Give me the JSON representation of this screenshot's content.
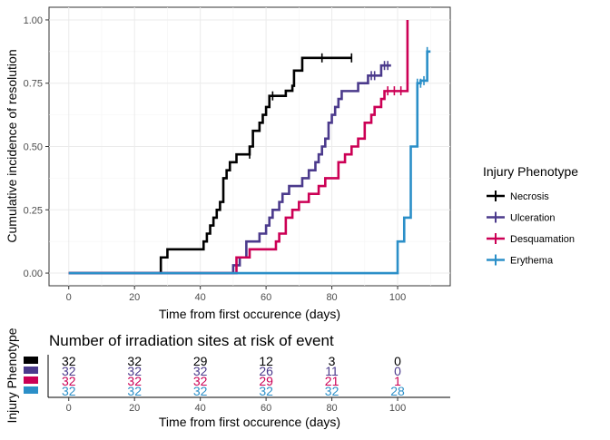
{
  "chart_data": [
    {
      "type": "line",
      "subtype": "step",
      "xlabel": "Time from first occurence (days)",
      "ylabel": "Cumulative incidence of resolution",
      "xlim": [
        -6,
        116
      ],
      "ylim": [
        -0.05,
        1.05
      ],
      "x_ticks": [
        0,
        20,
        40,
        60,
        80,
        100
      ],
      "y_ticks": [
        0.0,
        0.25,
        0.5,
        0.75,
        1.0
      ],
      "y_tick_labels": [
        "0.00",
        "0.25",
        "0.50",
        "0.75",
        "1.00"
      ],
      "grid": true,
      "legend": {
        "title": "Injury Phenotype",
        "position": "right"
      },
      "series": [
        {
          "name": "Necrosis",
          "color": "#000000",
          "points": [
            [
              0,
              0
            ],
            [
              28,
              0
            ],
            [
              28,
              0.062
            ],
            [
              30,
              0.062
            ],
            [
              30,
              0.094
            ],
            [
              41,
              0.094
            ],
            [
              41,
              0.125
            ],
            [
              42,
              0.125
            ],
            [
              42,
              0.156
            ],
            [
              43,
              0.156
            ],
            [
              43,
              0.188
            ],
            [
              44,
              0.188
            ],
            [
              44,
              0.219
            ],
            [
              45,
              0.219
            ],
            [
              45,
              0.25
            ],
            [
              46,
              0.25
            ],
            [
              46,
              0.281
            ],
            [
              47,
              0.281
            ],
            [
              47,
              0.375
            ],
            [
              48,
              0.375
            ],
            [
              48,
              0.406
            ],
            [
              49,
              0.406
            ],
            [
              49,
              0.438
            ],
            [
              51,
              0.438
            ],
            [
              51,
              0.469
            ],
            [
              55,
              0.469
            ],
            [
              55,
              0.5
            ],
            [
              56,
              0.5
            ],
            [
              56,
              0.562
            ],
            [
              58,
              0.562
            ],
            [
              58,
              0.594
            ],
            [
              59,
              0.594
            ],
            [
              59,
              0.625
            ],
            [
              60,
              0.625
            ],
            [
              60,
              0.656
            ],
            [
              61,
              0.656
            ],
            [
              61,
              0.7
            ],
            [
              66,
              0.7
            ],
            [
              66,
              0.72
            ],
            [
              68,
              0.72
            ],
            [
              68,
              0.74
            ],
            [
              68.5,
              0.74
            ],
            [
              68.5,
              0.8
            ],
            [
              71,
              0.8
            ],
            [
              71,
              0.85
            ],
            [
              86,
              0.85
            ]
          ],
          "censored": [
            [
              55,
              0.47
            ],
            [
              62,
              0.7
            ],
            [
              77,
              0.85
            ],
            [
              86,
              0.85
            ]
          ]
        },
        {
          "name": "Ulceration",
          "color": "#4b3a8c",
          "points": [
            [
              0,
              0
            ],
            [
              50,
              0
            ],
            [
              50,
              0.031
            ],
            [
              52,
              0.031
            ],
            [
              52,
              0.062
            ],
            [
              54,
              0.062
            ],
            [
              54,
              0.125
            ],
            [
              58,
              0.125
            ],
            [
              58,
              0.156
            ],
            [
              60,
              0.156
            ],
            [
              60,
              0.188
            ],
            [
              61,
              0.188
            ],
            [
              61,
              0.219
            ],
            [
              62,
              0.219
            ],
            [
              62,
              0.25
            ],
            [
              64,
              0.25
            ],
            [
              64,
              0.281
            ],
            [
              65,
              0.281
            ],
            [
              65,
              0.313
            ],
            [
              67,
              0.313
            ],
            [
              67,
              0.344
            ],
            [
              71,
              0.344
            ],
            [
              71,
              0.375
            ],
            [
              73,
              0.375
            ],
            [
              73,
              0.406
            ],
            [
              75,
              0.406
            ],
            [
              75,
              0.438
            ],
            [
              76,
              0.438
            ],
            [
              76,
              0.469
            ],
            [
              77,
              0.469
            ],
            [
              77,
              0.5
            ],
            [
              78,
              0.5
            ],
            [
              78,
              0.531
            ],
            [
              79,
              0.531
            ],
            [
              79,
              0.594
            ],
            [
              80,
              0.594
            ],
            [
              80,
              0.625
            ],
            [
              81,
              0.625
            ],
            [
              81,
              0.656
            ],
            [
              82,
              0.656
            ],
            [
              82,
              0.688
            ],
            [
              83,
              0.688
            ],
            [
              83,
              0.719
            ],
            [
              88,
              0.719
            ],
            [
              88,
              0.75
            ],
            [
              91,
              0.75
            ],
            [
              91,
              0.78
            ],
            [
              95,
              0.78
            ],
            [
              95,
              0.82
            ],
            [
              98,
              0.82
            ]
          ],
          "censored": [
            [
              92,
              0.78
            ],
            [
              93,
              0.78
            ],
            [
              96,
              0.82
            ],
            [
              97,
              0.82
            ]
          ]
        },
        {
          "name": "Desquamation",
          "color": "#cc0055",
          "points": [
            [
              0,
              0
            ],
            [
              51,
              0
            ],
            [
              51,
              0.062
            ],
            [
              55,
              0.062
            ],
            [
              55,
              0.094
            ],
            [
              63,
              0.094
            ],
            [
              63,
              0.125
            ],
            [
              64,
              0.125
            ],
            [
              64,
              0.156
            ],
            [
              66,
              0.156
            ],
            [
              66,
              0.219
            ],
            [
              68,
              0.219
            ],
            [
              68,
              0.25
            ],
            [
              70,
              0.25
            ],
            [
              70,
              0.281
            ],
            [
              73,
              0.281
            ],
            [
              73,
              0.313
            ],
            [
              76,
              0.313
            ],
            [
              76,
              0.344
            ],
            [
              78,
              0.344
            ],
            [
              78,
              0.375
            ],
            [
              82,
              0.375
            ],
            [
              82,
              0.438
            ],
            [
              84,
              0.438
            ],
            [
              84,
              0.469
            ],
            [
              86,
              0.469
            ],
            [
              86,
              0.5
            ],
            [
              88,
              0.5
            ],
            [
              88,
              0.531
            ],
            [
              90,
              0.531
            ],
            [
              90,
              0.594
            ],
            [
              92,
              0.594
            ],
            [
              92,
              0.625
            ],
            [
              93,
              0.625
            ],
            [
              93,
              0.656
            ],
            [
              95,
              0.656
            ],
            [
              95,
              0.688
            ],
            [
              96,
              0.688
            ],
            [
              96,
              0.719
            ],
            [
              103,
              0.719
            ],
            [
              103,
              1.0
            ]
          ],
          "censored": [
            [
              97,
              0.72
            ],
            [
              99,
              0.72
            ],
            [
              101,
              0.72
            ]
          ]
        },
        {
          "name": "Erythema",
          "color": "#2b8fc8",
          "points": [
            [
              0,
              0
            ],
            [
              100,
              0
            ],
            [
              100,
              0.125
            ],
            [
              102,
              0.125
            ],
            [
              102,
              0.219
            ],
            [
              104,
              0.219
            ],
            [
              104,
              0.5
            ],
            [
              106,
              0.5
            ],
            [
              106,
              0.75
            ],
            [
              107,
              0.75
            ],
            [
              107,
              0.76
            ],
            [
              109,
              0.76
            ],
            [
              109,
              0.875
            ],
            [
              110,
              0.875
            ]
          ],
          "censored": [
            [
              106,
              0.75
            ],
            [
              107,
              0.75
            ],
            [
              108,
              0.76
            ],
            [
              109,
              0.875
            ]
          ]
        }
      ]
    },
    {
      "type": "table",
      "title": "Number of irradiation sites at risk of event",
      "xlabel": "Time from first occurence (days)",
      "ylabel": "Injury Phenotype",
      "xlim": [
        -6,
        116
      ],
      "x_ticks": [
        0,
        20,
        40,
        60,
        80,
        100
      ],
      "rows": [
        {
          "color": "#000000",
          "values": [
            "32",
            "32",
            "29",
            "12",
            "3",
            "0"
          ]
        },
        {
          "color": "#4b3a8c",
          "values": [
            "32",
            "32",
            "32",
            "26",
            "11",
            "0"
          ]
        },
        {
          "color": "#cc0055",
          "values": [
            "32",
            "32",
            "32",
            "29",
            "21",
            "1"
          ]
        },
        {
          "color": "#2b8fc8",
          "values": [
            "32",
            "32",
            "32",
            "32",
            "32",
            "28"
          ]
        }
      ]
    }
  ]
}
